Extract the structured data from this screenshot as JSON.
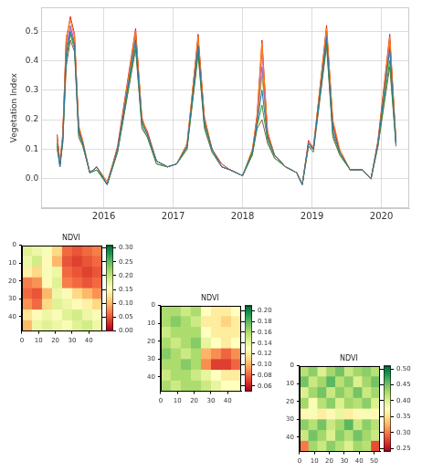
{
  "chart_data": [
    {
      "type": "line",
      "y_label": "Vegetation Index",
      "grid": true,
      "x": [
        2015.33,
        2015.37,
        2015.41,
        2015.46,
        2015.52,
        2015.58,
        2015.64,
        2015.7,
        2015.8,
        2015.9,
        2016.05,
        2016.2,
        2016.46,
        2016.55,
        2016.63,
        2016.76,
        2016.92,
        2017.05,
        2017.2,
        2017.36,
        2017.45,
        2017.56,
        2017.7,
        2017.82,
        2018.0,
        2018.14,
        2018.21,
        2018.28,
        2018.36,
        2018.46,
        2018.62,
        2018.78,
        2018.86,
        2018.95,
        2019.02,
        2019.21,
        2019.3,
        2019.4,
        2019.55,
        2019.72,
        2019.85,
        2019.95,
        2020.12,
        2020.21
      ],
      "xlim": [
        2015.1,
        2020.4
      ],
      "xticks": [
        2016,
        2017,
        2018,
        2019,
        2020
      ],
      "ylim": [
        -0.1,
        0.58
      ],
      "yticks": [
        {
          "value": 0,
          "label": "0.0"
        },
        0.1,
        0.2,
        0.3,
        0.4,
        0.5
      ],
      "series": [
        {
          "color": "#1f77b4",
          "values": [
            0.12,
            0.04,
            0.13,
            0.42,
            0.5,
            0.45,
            0.16,
            0.12,
            0.02,
            0.04,
            -0.02,
            0.1,
            0.47,
            0.19,
            0.15,
            0.06,
            0.04,
            0.05,
            0.11,
            0.45,
            0.19,
            0.1,
            0.04,
            0.03,
            0.01,
            0.09,
            0.19,
            0.3,
            0.14,
            0.08,
            0.04,
            0.02,
            -0.02,
            0.12,
            0.1,
            0.48,
            0.16,
            0.09,
            0.03,
            0.03,
            0.0,
            0.12,
            0.44,
            0.12
          ]
        },
        {
          "color": "#ff7f0e",
          "values": [
            0.14,
            0.06,
            0.15,
            0.48,
            0.54,
            0.48,
            0.18,
            0.13,
            0.02,
            0.04,
            -0.01,
            0.1,
            0.5,
            0.21,
            0.15,
            0.06,
            0.04,
            0.05,
            0.12,
            0.48,
            0.21,
            0.1,
            0.04,
            0.03,
            0.01,
            0.1,
            0.21,
            0.46,
            0.16,
            0.08,
            0.04,
            0.02,
            -0.02,
            0.12,
            0.11,
            0.51,
            0.2,
            0.1,
            0.03,
            0.03,
            0.0,
            0.12,
            0.48,
            0.13
          ]
        },
        {
          "color": "#2ca02c",
          "values": [
            0.11,
            0.05,
            0.12,
            0.4,
            0.49,
            0.44,
            0.15,
            0.11,
            0.02,
            0.03,
            -0.02,
            0.09,
            0.45,
            0.18,
            0.14,
            0.05,
            0.04,
            0.05,
            0.1,
            0.43,
            0.18,
            0.09,
            0.04,
            0.03,
            0.01,
            0.08,
            0.18,
            0.25,
            0.13,
            0.07,
            0.04,
            0.02,
            -0.02,
            0.11,
            0.1,
            0.46,
            0.15,
            0.08,
            0.03,
            0.03,
            0.0,
            0.11,
            0.4,
            0.11
          ]
        },
        {
          "color": "#d62728",
          "values": [
            0.15,
            0.05,
            0.14,
            0.47,
            0.55,
            0.49,
            0.17,
            0.12,
            0.02,
            0.04,
            -0.02,
            0.11,
            0.51,
            0.2,
            0.16,
            0.06,
            0.04,
            0.05,
            0.11,
            0.49,
            0.2,
            0.1,
            0.05,
            0.03,
            0.01,
            0.09,
            0.22,
            0.47,
            0.15,
            0.08,
            0.04,
            0.02,
            -0.02,
            0.13,
            0.1,
            0.52,
            0.19,
            0.09,
            0.03,
            0.03,
            0.0,
            0.13,
            0.49,
            0.12
          ]
        },
        {
          "color": "#9467bd",
          "values": [
            0.13,
            0.05,
            0.14,
            0.44,
            0.52,
            0.46,
            0.17,
            0.12,
            0.02,
            0.04,
            -0.02,
            0.1,
            0.48,
            0.2,
            0.15,
            0.06,
            0.04,
            0.05,
            0.11,
            0.46,
            0.2,
            0.1,
            0.04,
            0.03,
            0.01,
            0.09,
            0.2,
            0.38,
            0.15,
            0.08,
            0.04,
            0.02,
            -0.02,
            0.12,
            0.1,
            0.49,
            0.18,
            0.09,
            0.03,
            0.03,
            0.0,
            0.12,
            0.45,
            0.12
          ]
        },
        {
          "color": "#8c564b",
          "values": [
            0.1,
            0.04,
            0.12,
            0.38,
            0.47,
            0.43,
            0.14,
            0.11,
            0.02,
            0.03,
            -0.02,
            0.09,
            0.44,
            0.17,
            0.14,
            0.05,
            0.04,
            0.05,
            0.1,
            0.42,
            0.17,
            0.09,
            0.04,
            0.03,
            0.01,
            0.08,
            0.17,
            0.2,
            0.12,
            0.07,
            0.04,
            0.02,
            -0.02,
            0.11,
            0.09,
            0.45,
            0.14,
            0.08,
            0.03,
            0.03,
            0.0,
            0.11,
            0.38,
            0.11
          ]
        },
        {
          "color": "#e377c2",
          "values": [
            0.14,
            0.06,
            0.15,
            0.46,
            0.51,
            0.47,
            0.18,
            0.12,
            0.02,
            0.04,
            -0.01,
            0.1,
            0.49,
            0.2,
            0.15,
            0.06,
            0.04,
            0.05,
            0.11,
            0.47,
            0.21,
            0.1,
            0.04,
            0.03,
            0.01,
            0.09,
            0.2,
            0.42,
            0.16,
            0.08,
            0.04,
            0.02,
            -0.02,
            0.12,
            0.1,
            0.5,
            0.19,
            0.09,
            0.03,
            0.03,
            0.0,
            0.12,
            0.47,
            0.12
          ]
        },
        {
          "color": "#bcbd22",
          "values": [
            0.12,
            0.05,
            0.13,
            0.43,
            0.5,
            0.46,
            0.16,
            0.12,
            0.02,
            0.04,
            -0.02,
            0.1,
            0.47,
            0.19,
            0.15,
            0.06,
            0.04,
            0.05,
            0.11,
            0.45,
            0.19,
            0.1,
            0.04,
            0.03,
            0.01,
            0.09,
            0.19,
            0.35,
            0.14,
            0.08,
            0.04,
            0.02,
            -0.02,
            0.12,
            0.1,
            0.48,
            0.17,
            0.09,
            0.03,
            0.03,
            0.0,
            0.12,
            0.43,
            0.12
          ]
        }
      ]
    },
    {
      "type": "heatmap",
      "title": "NDVI",
      "xlim": [
        0,
        48
      ],
      "ylim": [
        48,
        0
      ],
      "xticks": [
        0,
        10,
        20,
        30,
        40
      ],
      "yticks": [
        0,
        10,
        20,
        30,
        40
      ],
      "cells": [
        [
          0.18,
          0.17,
          0.16,
          0.12,
          0.06,
          0.05,
          0.06,
          0.07
        ],
        [
          0.17,
          0.19,
          0.15,
          0.1,
          0.05,
          0.04,
          0.05,
          0.06
        ],
        [
          0.14,
          0.12,
          0.16,
          0.17,
          0.06,
          0.05,
          0.04,
          0.05
        ],
        [
          0.07,
          0.08,
          0.15,
          0.18,
          0.07,
          0.06,
          0.05,
          0.06
        ],
        [
          0.06,
          0.05,
          0.1,
          0.17,
          0.16,
          0.12,
          0.1,
          0.08
        ],
        [
          0.08,
          0.06,
          0.12,
          0.18,
          0.17,
          0.15,
          0.14,
          0.12
        ],
        [
          0.13,
          0.15,
          0.17,
          0.16,
          0.18,
          0.19,
          0.17,
          0.16
        ],
        [
          0.1,
          0.17,
          0.18,
          0.17,
          0.16,
          0.18,
          0.19,
          0.17
        ]
      ],
      "colorbar": {
        "range": [
          0.0,
          0.31
        ],
        "ticks": [
          {
            "value": 0,
            "label": "0.00"
          },
          {
            "value": 0.05,
            "label": "0.05"
          },
          {
            "value": 0.1,
            "label": "0.10"
          },
          {
            "value": 0.15,
            "label": "0.15"
          },
          {
            "value": 0.2,
            "label": "0.20"
          },
          {
            "value": 0.25,
            "label": "0.25"
          },
          {
            "value": 0.3,
            "label": "0.30"
          }
        ]
      }
    },
    {
      "type": "heatmap",
      "title": "NDVI",
      "xlim": [
        0,
        48
      ],
      "ylim": [
        48,
        0
      ],
      "xticks": [
        0,
        10,
        20,
        30,
        40
      ],
      "yticks": [
        0,
        10,
        20,
        30,
        40
      ],
      "cells": [
        [
          0.16,
          0.16,
          0.15,
          0.16,
          0.13,
          0.12,
          0.12,
          0.13
        ],
        [
          0.16,
          0.17,
          0.16,
          0.15,
          0.12,
          0.12,
          0.11,
          0.12
        ],
        [
          0.15,
          0.16,
          0.16,
          0.16,
          0.13,
          0.12,
          0.12,
          0.12
        ],
        [
          0.16,
          0.15,
          0.16,
          0.17,
          0.14,
          0.13,
          0.12,
          0.13
        ],
        [
          0.17,
          0.16,
          0.15,
          0.16,
          0.1,
          0.09,
          0.08,
          0.09
        ],
        [
          0.16,
          0.16,
          0.17,
          0.16,
          0.09,
          0.07,
          0.07,
          0.08
        ],
        [
          0.15,
          0.16,
          0.16,
          0.15,
          0.14,
          0.13,
          0.12,
          0.12
        ],
        [
          0.16,
          0.15,
          0.16,
          0.16,
          0.15,
          0.14,
          0.13,
          0.13
        ]
      ],
      "colorbar": {
        "range": [
          0.05,
          0.21
        ],
        "ticks": [
          {
            "value": 0.06,
            "label": "0.06"
          },
          {
            "value": 0.08,
            "label": "0.08"
          },
          {
            "value": 0.1,
            "label": "0.10"
          },
          {
            "value": 0.12,
            "label": "0.12"
          },
          {
            "value": 0.14,
            "label": "0.14"
          },
          {
            "value": 0.16,
            "label": "0.16"
          },
          {
            "value": 0.18,
            "label": "0.18"
          },
          {
            "value": 0.2,
            "label": "0.20"
          }
        ]
      }
    },
    {
      "type": "heatmap",
      "title": "NDVI",
      "xlim": [
        0,
        54
      ],
      "ylim": [
        48,
        0
      ],
      "xticks": [
        0,
        10,
        20,
        30,
        40,
        50
      ],
      "yticks": [
        0,
        10,
        20,
        30,
        40
      ],
      "cells": [
        [
          0.42,
          0.44,
          0.4,
          0.43,
          0.45,
          0.41,
          0.43,
          0.44,
          0.42
        ],
        [
          0.45,
          0.41,
          0.43,
          0.46,
          0.42,
          0.44,
          0.4,
          0.43,
          0.45
        ],
        [
          0.4,
          0.43,
          0.45,
          0.41,
          0.44,
          0.42,
          0.45,
          0.41,
          0.43
        ],
        [
          0.43,
          0.38,
          0.42,
          0.44,
          0.4,
          0.43,
          0.42,
          0.44,
          0.4
        ],
        [
          0.37,
          0.38,
          0.36,
          0.37,
          0.39,
          0.36,
          0.37,
          0.38,
          0.37
        ],
        [
          0.44,
          0.42,
          0.45,
          0.41,
          0.43,
          0.46,
          0.41,
          0.44,
          0.42
        ],
        [
          0.41,
          0.45,
          0.43,
          0.4,
          0.44,
          0.42,
          0.45,
          0.43,
          0.41
        ],
        [
          0.3,
          0.43,
          0.41,
          0.44,
          0.42,
          0.4,
          0.43,
          0.42,
          0.28
        ]
      ],
      "colorbar": {
        "range": [
          0.24,
          0.51
        ],
        "ticks": [
          {
            "value": 0.25,
            "label": "0.25"
          },
          {
            "value": 0.3,
            "label": "0.30"
          },
          {
            "value": 0.35,
            "label": "0.35"
          },
          {
            "value": 0.4,
            "label": "0.40"
          },
          {
            "value": 0.45,
            "label": "0.45"
          },
          {
            "value": 0.5,
            "label": "0.50"
          }
        ]
      }
    }
  ]
}
